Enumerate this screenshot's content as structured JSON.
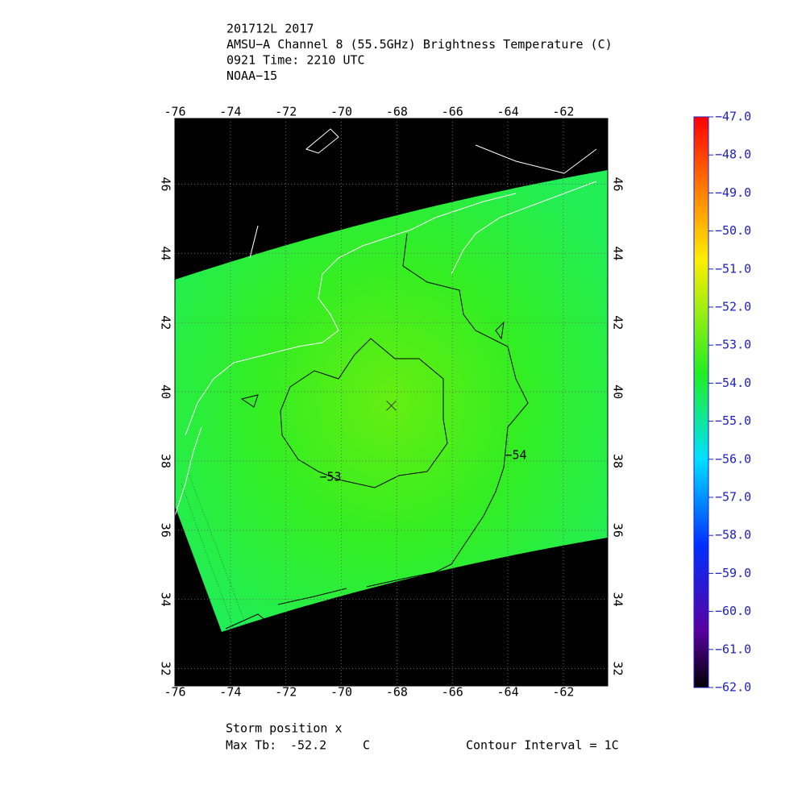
{
  "title_lines": [
    "201712L 2017",
    "AMSU−A Channel 8 (55.5GHz) Brightness Temperature (C)",
    "0921 Time: 2210 UTC",
    "NOAA−15"
  ],
  "map": {
    "lonlim": [
      -76,
      -60.4
    ],
    "latlim": [
      31.5,
      47.9
    ],
    "lon_ticks": [
      -76,
      -74,
      -72,
      -70,
      -68,
      -66,
      -64,
      -62
    ],
    "lat_ticks": [
      32,
      34,
      36,
      38,
      40,
      42,
      44,
      46
    ],
    "storm": {
      "lon": -68.2,
      "lat": 39.6
    },
    "contour_labels": [
      {
        "value": -53,
        "label": "−53"
      },
      {
        "value": -54,
        "label": "−54"
      }
    ]
  },
  "colorbar": {
    "lim": [
      -62,
      -47
    ],
    "ticks": [
      {
        "value": -47,
        "label": "−47.0"
      },
      {
        "value": -48,
        "label": "−48.0"
      },
      {
        "value": -49,
        "label": "−49.0"
      },
      {
        "value": -50,
        "label": "−50.0"
      },
      {
        "value": -51,
        "label": "−51.0"
      },
      {
        "value": -52,
        "label": "−52.0"
      },
      {
        "value": -53,
        "label": "−53.0"
      },
      {
        "value": -54,
        "label": "−54.0"
      },
      {
        "value": -55,
        "label": "−55.0"
      },
      {
        "value": -56,
        "label": "−56.0"
      },
      {
        "value": -57,
        "label": "−57.0"
      },
      {
        "value": -58,
        "label": "−58.0"
      },
      {
        "value": -59,
        "label": "−59.0"
      },
      {
        "value": -60,
        "label": "−60.0"
      },
      {
        "value": -61,
        "label": "−61.0"
      },
      {
        "value": -62,
        "label": "−62.0"
      }
    ]
  },
  "footer": {
    "storm_position": "Storm position x",
    "max_tb_label": "Max Tb:",
    "max_tb": -52.2,
    "max_tb_unit": "C",
    "contour_interval": "Contour Interval = 1C"
  }
}
